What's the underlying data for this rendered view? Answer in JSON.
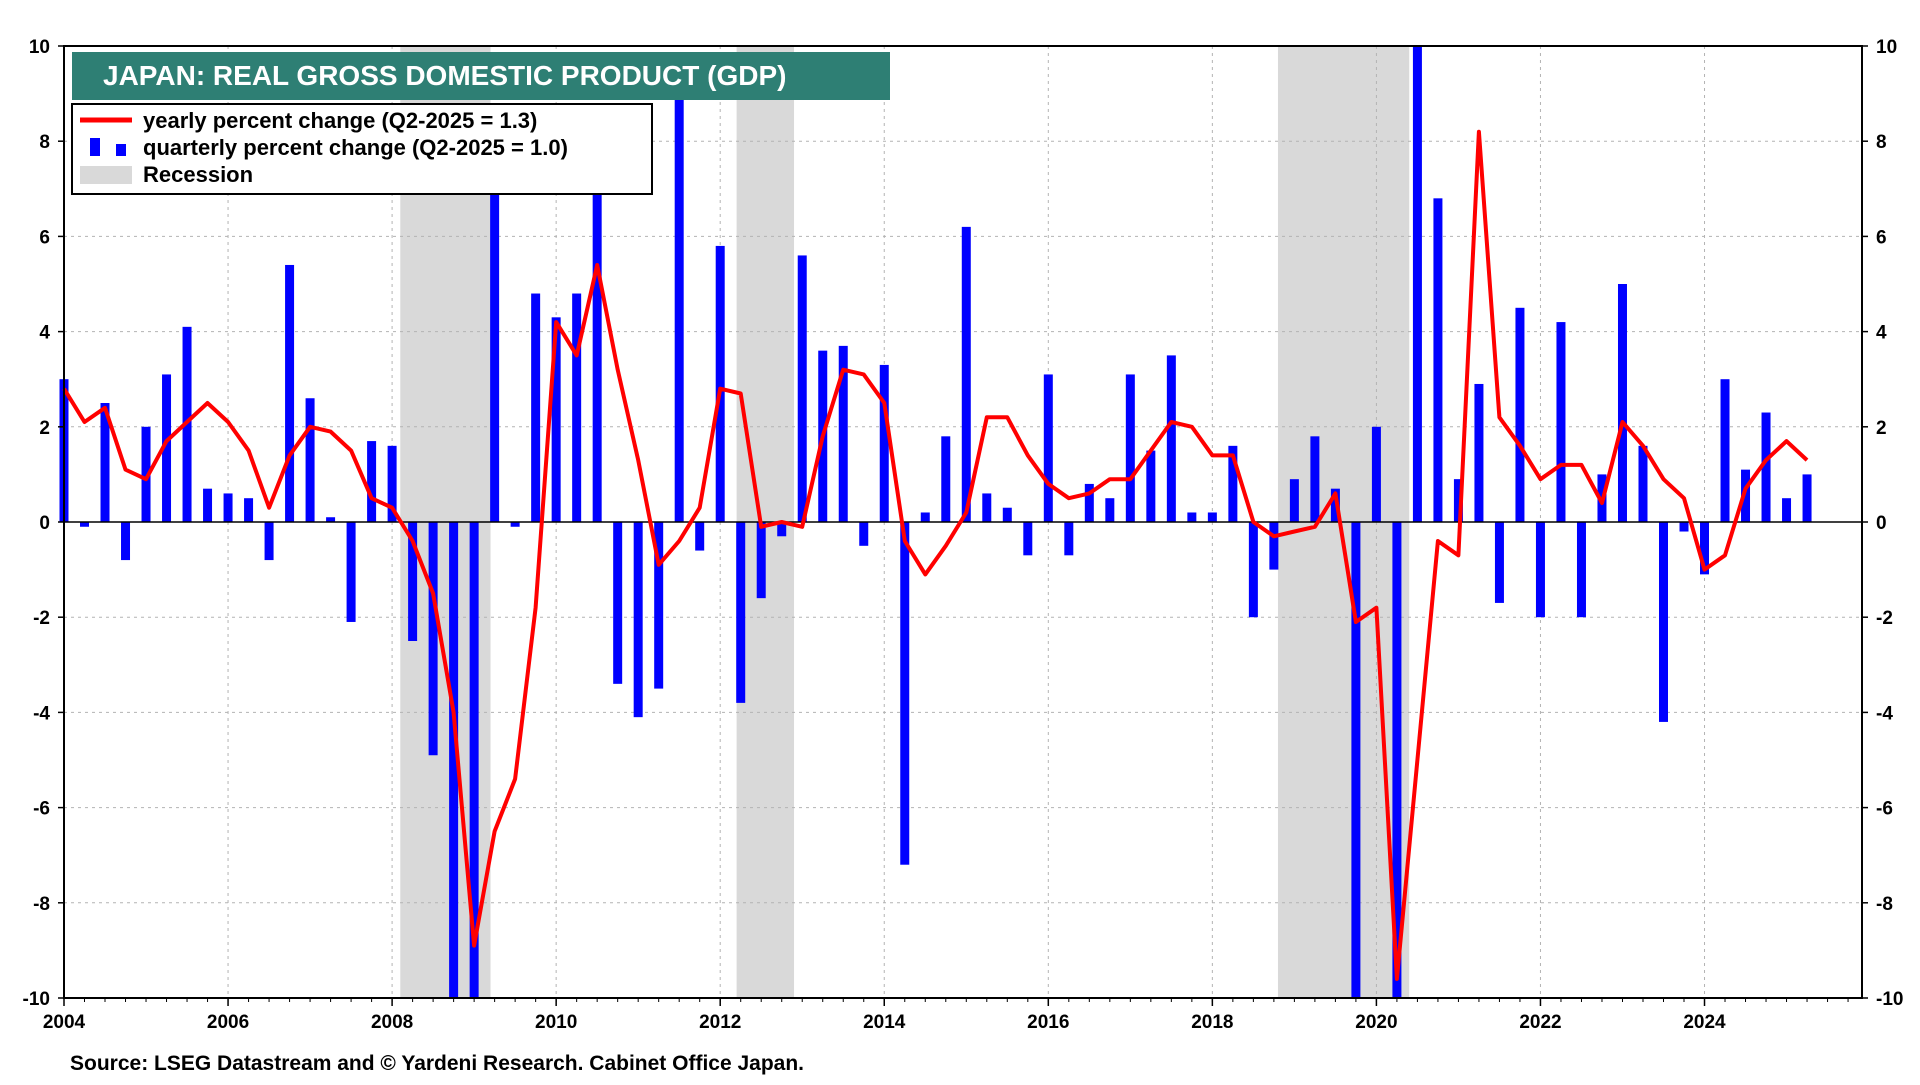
{
  "chart_data": {
    "type": "bar",
    "title": "JAPAN: REAL GROSS DOMESTIC PRODUCT (GDP)",
    "source": "Source: LSEG Datastream and © Yardeni Research. Cabinet Office Japan.",
    "x_range": [
      2004.0,
      2025.92
    ],
    "ylim": [
      -10,
      10
    ],
    "y_ticks": [
      10,
      8,
      6,
      4,
      2,
      0,
      -2,
      -4,
      -6,
      -8,
      -10
    ],
    "x_ticks": [
      2004,
      2006,
      2008,
      2010,
      2012,
      2014,
      2016,
      2018,
      2020,
      2022,
      2024
    ],
    "grid": true,
    "legend_position": "top-left",
    "legend": {
      "yearly": "yearly percent change (Q2-2025 = 1.3)",
      "quarterly": "quarterly percent change (Q2-2025 = 1.0)",
      "recession": "Recession"
    },
    "colors": {
      "quarterly": "#0000ff",
      "yearly": "#ff0000",
      "recession": "#d9d9d9",
      "title_bg": "#2e7f74"
    },
    "recessions": [
      [
        2008.1,
        2009.2
      ],
      [
        2012.2,
        2012.9
      ],
      [
        2018.8,
        2020.4
      ]
    ],
    "series": [
      {
        "name": "quarterly percent change (Q2-2025 = 1.0)",
        "kind": "bar",
        "x": [
          2004.0,
          2004.25,
          2004.5,
          2004.75,
          2005.0,
          2005.25,
          2005.5,
          2005.75,
          2006.0,
          2006.25,
          2006.5,
          2006.75,
          2007.0,
          2007.25,
          2007.5,
          2007.75,
          2008.0,
          2008.25,
          2008.5,
          2008.75,
          2009.0,
          2009.25,
          2009.5,
          2009.75,
          2010.0,
          2010.25,
          2010.5,
          2010.75,
          2011.0,
          2011.25,
          2011.5,
          2011.75,
          2012.0,
          2012.25,
          2012.5,
          2012.75,
          2013.0,
          2013.25,
          2013.5,
          2013.75,
          2014.0,
          2014.25,
          2014.5,
          2014.75,
          2015.0,
          2015.25,
          2015.5,
          2015.75,
          2016.0,
          2016.25,
          2016.5,
          2016.75,
          2017.0,
          2017.25,
          2017.5,
          2017.75,
          2018.0,
          2018.25,
          2018.5,
          2018.75,
          2019.0,
          2019.25,
          2019.5,
          2019.75,
          2020.0,
          2020.25,
          2020.5,
          2020.75,
          2021.0,
          2021.25,
          2021.5,
          2021.75,
          2022.0,
          2022.25,
          2022.5,
          2022.75,
          2023.0,
          2023.25,
          2023.5,
          2023.75,
          2024.0,
          2024.25,
          2024.5,
          2024.75,
          2025.0,
          2025.25
        ],
        "values": [
          3.0,
          -0.1,
          2.5,
          -0.8,
          2.0,
          3.1,
          4.1,
          0.7,
          0.6,
          0.5,
          -0.8,
          5.4,
          2.6,
          0.1,
          -2.1,
          1.7,
          1.6,
          -2.5,
          -4.9,
          -10.0,
          -10.0,
          6.9,
          -0.1,
          4.8,
          4.3,
          4.8,
          6.9,
          -3.4,
          -4.1,
          -3.5,
          9.0,
          -0.6,
          5.8,
          -3.8,
          -1.6,
          -0.3,
          5.6,
          3.6,
          3.7,
          -0.5,
          3.3,
          -7.2,
          0.2,
          1.8,
          6.2,
          0.6,
          0.3,
          -0.7,
          3.1,
          -0.7,
          0.8,
          0.5,
          3.1,
          1.5,
          3.5,
          0.2,
          0.2,
          1.6,
          -2.0,
          -1.0,
          0.9,
          1.8,
          0.7,
          -10.0,
          2.0,
          -10.0,
          10.0,
          6.8,
          0.9,
          2.9,
          -1.7,
          4.5,
          -2.0,
          4.2,
          -2.0,
          1.0,
          5.0,
          1.6,
          -4.2,
          -0.2,
          -1.1,
          3.0,
          1.1,
          2.3,
          0.5,
          1.0
        ]
      },
      {
        "name": "yearly percent change (Q2-2025 = 1.3)",
        "kind": "line",
        "x": [
          2004.0,
          2004.25,
          2004.5,
          2004.75,
          2005.0,
          2005.25,
          2005.5,
          2005.75,
          2006.0,
          2006.25,
          2006.5,
          2006.75,
          2007.0,
          2007.25,
          2007.5,
          2007.75,
          2008.0,
          2008.25,
          2008.5,
          2008.75,
          2009.0,
          2009.25,
          2009.5,
          2009.75,
          2010.0,
          2010.25,
          2010.5,
          2010.75,
          2011.0,
          2011.25,
          2011.5,
          2011.75,
          2012.0,
          2012.25,
          2012.5,
          2012.75,
          2013.0,
          2013.25,
          2013.5,
          2013.75,
          2014.0,
          2014.25,
          2014.5,
          2014.75,
          2015.0,
          2015.25,
          2015.5,
          2015.75,
          2016.0,
          2016.25,
          2016.5,
          2016.75,
          2017.0,
          2017.25,
          2017.5,
          2017.75,
          2018.0,
          2018.25,
          2018.5,
          2018.75,
          2019.0,
          2019.25,
          2019.5,
          2019.75,
          2020.0,
          2020.25,
          2020.5,
          2020.75,
          2021.0,
          2021.25,
          2021.5,
          2021.75,
          2022.0,
          2022.25,
          2022.5,
          2022.75,
          2023.0,
          2023.25,
          2023.5,
          2023.75,
          2024.0,
          2024.25,
          2024.5,
          2024.75,
          2025.0,
          2025.25
        ],
        "values": [
          2.8,
          2.1,
          2.4,
          1.1,
          0.9,
          1.7,
          2.1,
          2.5,
          2.1,
          1.5,
          0.3,
          1.4,
          2.0,
          1.9,
          1.5,
          0.5,
          0.3,
          -0.4,
          -1.5,
          -4.0,
          -8.9,
          -6.5,
          -5.4,
          -1.8,
          4.2,
          3.5,
          5.4,
          3.2,
          1.3,
          -0.9,
          -0.4,
          0.3,
          2.8,
          2.7,
          -0.1,
          0.0,
          -0.1,
          1.8,
          3.2,
          3.1,
          2.5,
          -0.4,
          -1.1,
          -0.5,
          0.2,
          2.2,
          2.2,
          1.4,
          0.8,
          0.5,
          0.6,
          0.9,
          0.9,
          1.5,
          2.1,
          2.0,
          1.4,
          1.4,
          0.0,
          -0.3,
          -0.2,
          -0.1,
          0.6,
          -2.1,
          -1.8,
          -9.6,
          -5.0,
          -0.4,
          -0.7,
          8.2,
          2.2,
          1.6,
          0.9,
          1.2,
          1.2,
          0.4,
          2.1,
          1.6,
          0.9,
          0.5,
          -1.0,
          -0.7,
          0.7,
          1.3,
          1.7,
          1.3
        ]
      }
    ]
  }
}
